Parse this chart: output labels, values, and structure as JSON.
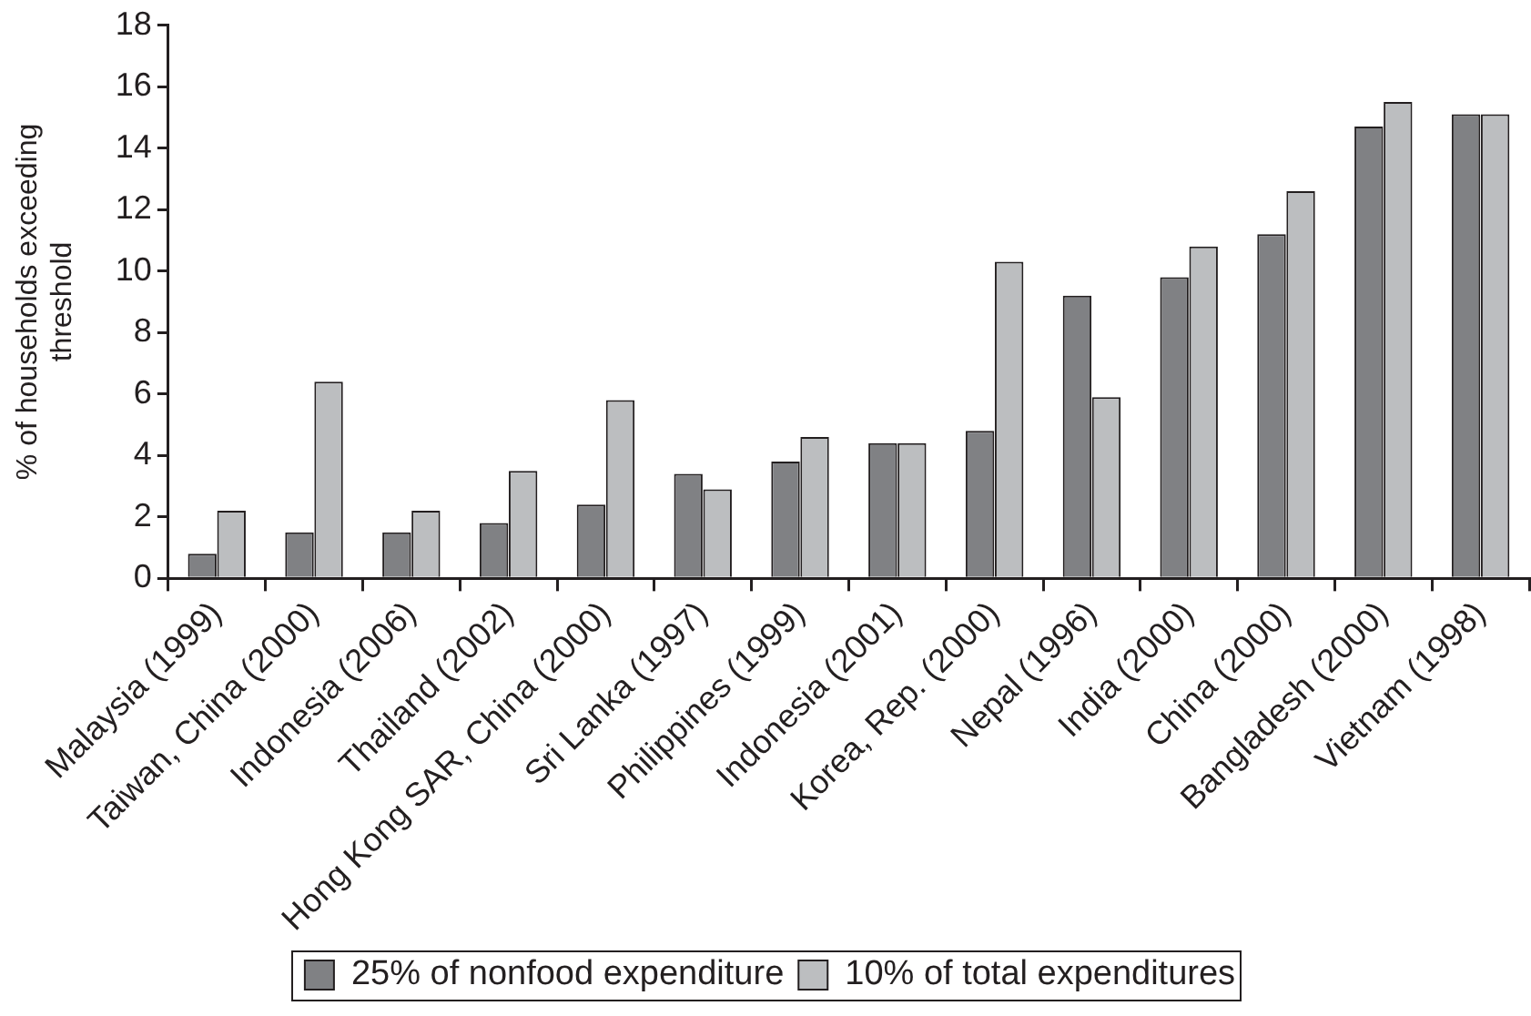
{
  "chart_data": {
    "type": "bar",
    "ylabel": "% of households exceeding threshold",
    "categories": [
      "Malaysia (1999)",
      "Taiwan, China (2000)",
      "Indonesia (2006)",
      "Thailand (2002)",
      "Hong Kong SAR, China (2000)",
      "Sri Lanka (1997)",
      "Philippines (1999)",
      "Indonesia (2001)",
      "Korea, Rep. (2000)",
      "Nepal (1996)",
      "India (2000)",
      "China (2000)",
      "Bangladesh (2000)",
      "Vietnam (1998)"
    ],
    "series": [
      {
        "name": "25% of nonfood expenditure",
        "color": "#808184",
        "values": [
          0.8,
          1.5,
          1.5,
          1.8,
          2.4,
          3.4,
          3.8,
          4.4,
          4.8,
          9.2,
          9.8,
          11.2,
          14.7,
          15.1
        ]
      },
      {
        "name": "10% of total expenditures",
        "color": "#bcbec0",
        "values": [
          2.2,
          6.4,
          2.2,
          3.5,
          5.8,
          2.9,
          4.6,
          4.4,
          10.3,
          5.9,
          10.8,
          12.6,
          15.5,
          15.1
        ]
      }
    ],
    "ylim": [
      0,
      18
    ],
    "yticks": [
      0,
      2,
      4,
      6,
      8,
      10,
      12,
      14,
      16,
      18
    ],
    "legend": "bottom"
  }
}
